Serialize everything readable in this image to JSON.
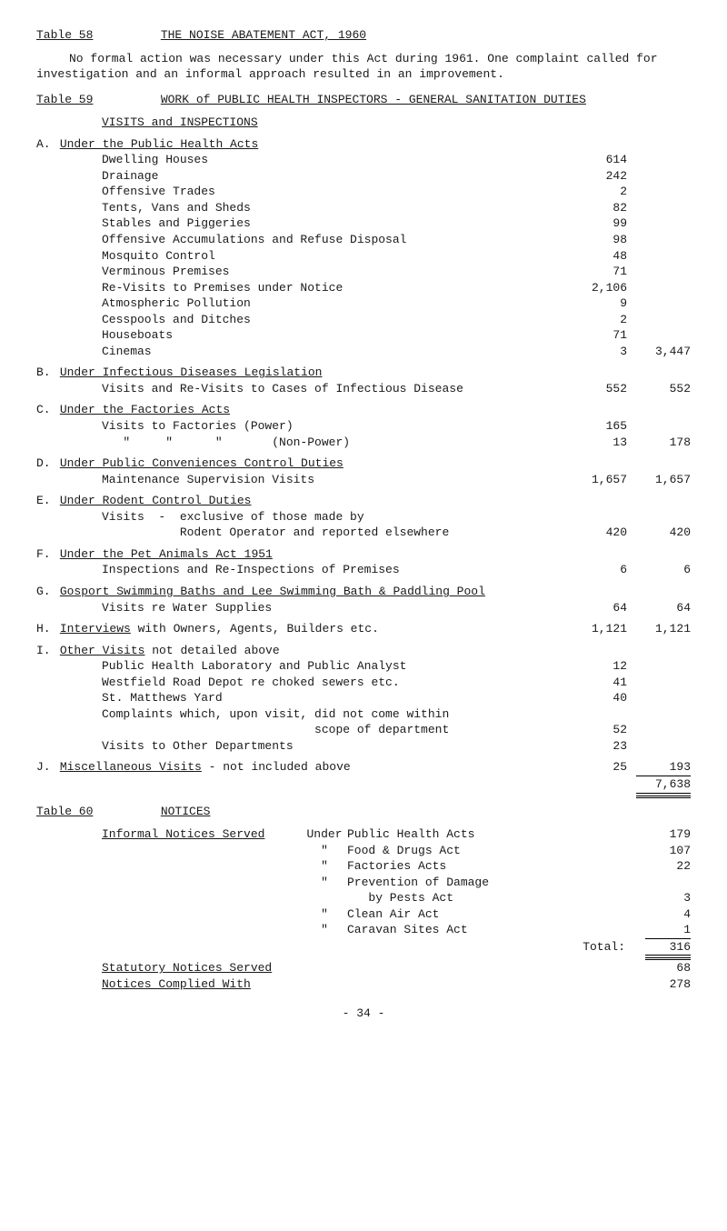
{
  "table58": {
    "label": "Table 58",
    "title": "THE  NOISE  ABATEMENT  ACT,  1960"
  },
  "para1": "No formal action was necessary under this Act during 1961.   One complaint called for investigation and an informal approach resulted in an improvement.",
  "table59": {
    "label": "Table 59",
    "title": "WORK  of  PUBLIC  HEALTH  INSPECTORS  -  GENERAL  SANITATION  DUTIES"
  },
  "visits_title": "VISITS  and  INSPECTIONS",
  "A": {
    "title": "Under the Public Health Acts",
    "rows": [
      {
        "d": "Dwelling Houses",
        "a": "614"
      },
      {
        "d": "Drainage",
        "a": "242"
      },
      {
        "d": "Offensive Trades",
        "a": "2"
      },
      {
        "d": "Tents, Vans and Sheds",
        "a": "82"
      },
      {
        "d": "Stables and Piggeries",
        "a": "99"
      },
      {
        "d": "Offensive Accumulations and Refuse Disposal",
        "a": "98"
      },
      {
        "d": "Mosquito Control",
        "a": "48"
      },
      {
        "d": "Verminous Premises",
        "a": "71"
      },
      {
        "d": "Re-Visits to Premises under Notice",
        "a": "2,106"
      },
      {
        "d": "Atmospheric Pollution",
        "a": "9"
      },
      {
        "d": "Cesspools and Ditches",
        "a": "2"
      },
      {
        "d": "Houseboats",
        "a": "71"
      },
      {
        "d": "Cinemas",
        "a": "3",
        "b": "3,447"
      }
    ]
  },
  "B": {
    "title": "Under Infectious Diseases Legislation",
    "rows": [
      {
        "d": "Visits and Re-Visits to Cases of Infectious Disease",
        "a": "552",
        "b": "552"
      }
    ]
  },
  "C": {
    "title": "Under the Factories Acts",
    "rows": [
      {
        "d": "Visits to Factories (Power)",
        "a": "165"
      },
      {
        "d": "   \"     \"      \"       (Non-Power)",
        "a": "13",
        "b": "178"
      }
    ]
  },
  "D": {
    "title": "Under Public Conveniences Control Duties",
    "rows": [
      {
        "d": "Maintenance Supervision Visits",
        "a": "1,657",
        "b": "1,657"
      }
    ]
  },
  "E": {
    "title": "Under Rodent Control Duties",
    "rows": [
      {
        "d": "Visits  -  exclusive of those made by",
        "a": ""
      },
      {
        "d": "           Rodent Operator and reported elsewhere",
        "a": "420",
        "b": "420"
      }
    ]
  },
  "F": {
    "title": "Under the Pet Animals Act 1951",
    "rows": [
      {
        "d": "Inspections and Re-Inspections of Premises",
        "a": "6",
        "b": "6"
      }
    ]
  },
  "G": {
    "title": "Gosport Swimming Baths and Lee Swimming Bath & Paddling Pool",
    "rows": [
      {
        "d": "Visits re Water Supplies",
        "a": "64",
        "b": "64"
      }
    ]
  },
  "H": {
    "title": "Interviews",
    "title_tail": " with Owners, Agents, Builders etc.",
    "a": "1,121",
    "b": "1,121"
  },
  "I": {
    "title": "Other Visits",
    "title_tail": " not detailed above",
    "rows": [
      {
        "d": "Public Health Laboratory and Public Analyst",
        "a": "12"
      },
      {
        "d": "Westfield Road Depot re choked sewers etc.",
        "a": "41"
      },
      {
        "d": "St. Matthews Yard",
        "a": "40"
      },
      {
        "d": "Complaints which, upon visit, did not come within",
        "a": ""
      },
      {
        "d": "                              scope of department",
        "a": "52"
      },
      {
        "d": "Visits to Other Departments",
        "a": "23"
      }
    ]
  },
  "J": {
    "title": "Miscellaneous Visits",
    "title_tail": "  -  not included above",
    "a": "25",
    "b": "193"
  },
  "grand_total": "7,638",
  "table60": {
    "label": "Table 60",
    "title": "NOTICES"
  },
  "informal": {
    "label": "Informal Notices Served",
    "rows": [
      {
        "pre": "Under",
        "d": "Public Health Acts",
        "n": "179"
      },
      {
        "pre": "\"",
        "d": "Food & Drugs Act",
        "n": "107"
      },
      {
        "pre": "\"",
        "d": "Factories Acts",
        "n": "22"
      },
      {
        "pre": "\"",
        "d": "Prevention of Damage",
        "n": ""
      },
      {
        "pre": "",
        "d": "   by Pests Act",
        "n": "3"
      },
      {
        "pre": "\"",
        "d": "Clean Air Act",
        "n": "4"
      },
      {
        "pre": "\"",
        "d": "Caravan Sites Act",
        "n": "1"
      }
    ],
    "total_label": "Total:",
    "total": "316"
  },
  "statutory": {
    "label": "Statutory Notices Served",
    "n": "68"
  },
  "complied": {
    "label": "Notices Complied With",
    "n": "278"
  },
  "page": "- 34 -"
}
